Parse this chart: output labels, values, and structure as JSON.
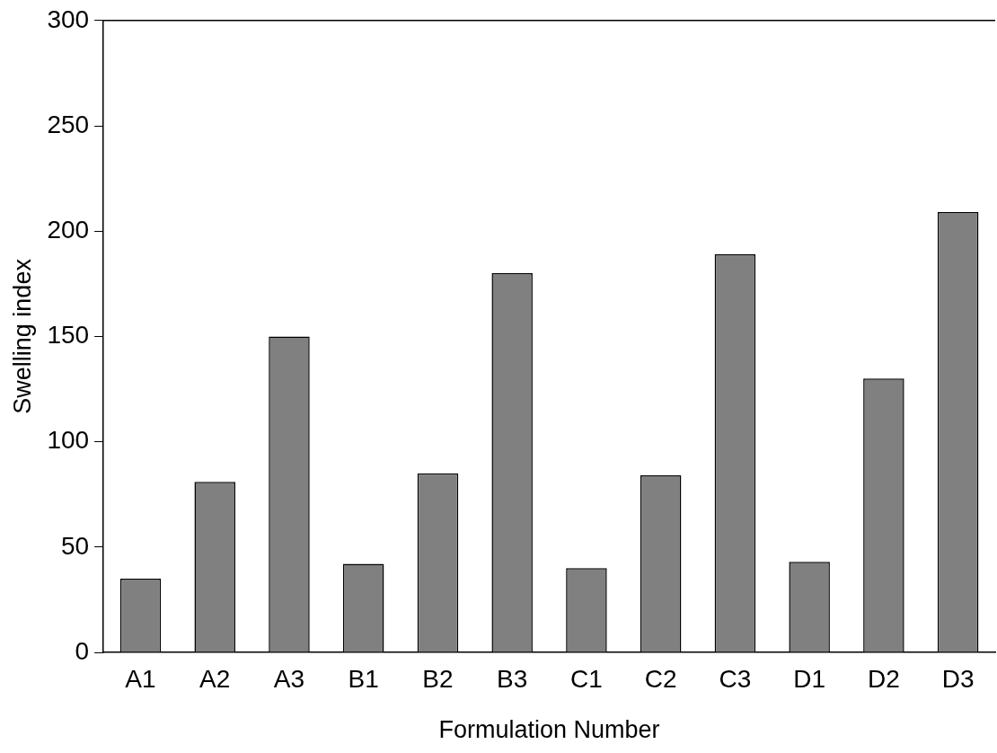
{
  "chart_data": {
    "type": "bar",
    "xlabel": "Formulation Number",
    "ylabel": "Swelling index",
    "categories": [
      "A1",
      "A2",
      "A3",
      "B1",
      "B2",
      "B3",
      "C1",
      "C2",
      "C3",
      "D1",
      "D2",
      "D3"
    ],
    "values": [
      35,
      81,
      150,
      42,
      85,
      180,
      40,
      84,
      189,
      43,
      130,
      209
    ],
    "color": "#808080",
    "ylim": [
      0,
      300
    ],
    "yticks": [
      0,
      50,
      100,
      150,
      200,
      250,
      300
    ],
    "grid": false,
    "legend": false
  }
}
